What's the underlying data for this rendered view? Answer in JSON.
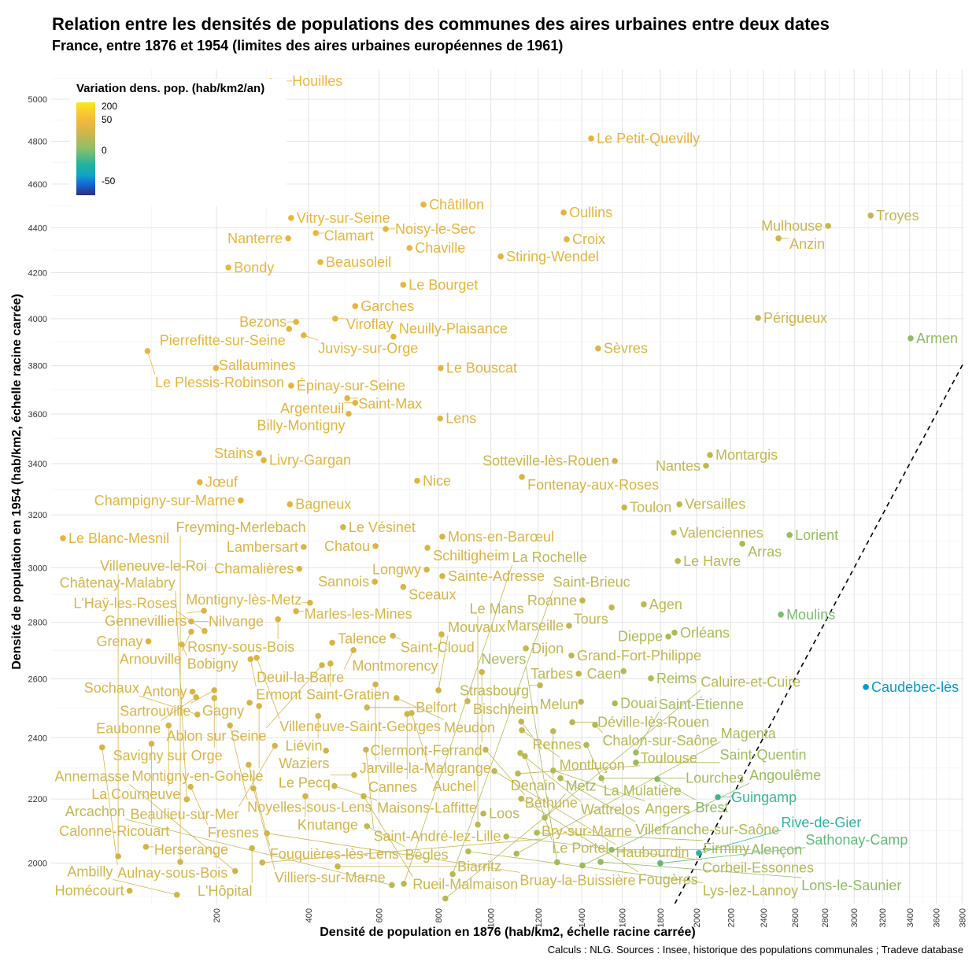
{
  "title": "Relation entre les densités de populations des communes des aires urbaines entre deux dates",
  "subtitle": "France, entre 1876 et 1954 (limites des aires urbaines européennes de 1961)",
  "caption": "Calculs : NLG. Sources : Insee, historique des populations communales ; Tradeve database",
  "chart_data": {
    "type": "scatter",
    "title": "Relation entre les densités de populations des communes des aires urbaines entre deux dates",
    "xlabel": "Densité de population en 1876 (hab/km2, échelle racine carrée)",
    "ylabel": "Densité de population en 1954 (hab/km2, échelle racine carrée)",
    "scale": "sqrt",
    "xlim": [
      13,
      3817
    ],
    "ylim": [
      1879,
      5145
    ],
    "grid": true,
    "reference_line": "y = x (dashed)",
    "xticks": [
      200,
      400,
      600,
      800,
      1000,
      1200,
      1400,
      1600,
      1800,
      2000,
      2200,
      2400,
      2600,
      2800,
      3000,
      3200,
      3400,
      3600,
      3800
    ],
    "yticks": [
      2000,
      2200,
      2400,
      2600,
      2800,
      3000,
      3200,
      3400,
      3600,
      3800,
      4000,
      4200,
      4400,
      4600,
      4800,
      5000
    ],
    "legend": {
      "title": "Variation dens. pop. (hab/km2/an)",
      "ticks": [
        "200",
        "50",
        "0",
        "-50"
      ],
      "placement": "top-left"
    },
    "color_variable": "(y - x) / 78",
    "points": [
      {
        "l": "Houilles",
        "x": 310,
        "y": 5088
      },
      {
        "l": "Le Petit-Quevilly",
        "x": 1445,
        "y": 4813
      },
      {
        "l": "Châtillon",
        "x": 747,
        "y": 4506
      },
      {
        "l": "Oullins",
        "x": 1315,
        "y": 4470
      },
      {
        "l": "Troyes",
        "x": 3116,
        "y": 4456
      },
      {
        "l": "Mulhouse",
        "x": 2821,
        "y": 4409
      },
      {
        "l": "Anzin",
        "x": 2495,
        "y": 4353
      },
      {
        "l": "Vitry-sur-Seine",
        "x": 357,
        "y": 4445
      },
      {
        "l": "Clamart",
        "x": 419,
        "y": 4377
      },
      {
        "l": "Noisy-le-Sec",
        "x": 621,
        "y": 4395
      },
      {
        "l": "Nanterre",
        "x": 350,
        "y": 4353
      },
      {
        "l": "Croix",
        "x": 1329,
        "y": 4349
      },
      {
        "l": "Chaville",
        "x": 699,
        "y": 4310
      },
      {
        "l": "Beausoleil",
        "x": 431,
        "y": 4247
      },
      {
        "l": "Stiring-Wendel",
        "x": 1040,
        "y": 4272
      },
      {
        "l": "Bondy",
        "x": 222,
        "y": 4223
      },
      {
        "l": "Le Bourget",
        "x": 678,
        "y": 4147
      },
      {
        "l": "Garches",
        "x": 528,
        "y": 4054
      },
      {
        "l": "Bezons",
        "x": 369,
        "y": 3986
      },
      {
        "l": "Viroflay",
        "x": 471,
        "y": 4000
      },
      {
        "l": "Pierrefitte-sur-Seine",
        "x": 352,
        "y": 3956
      },
      {
        "l": "Juvisy-sur-Orge",
        "x": 388,
        "y": 3929
      },
      {
        "l": "Neuilly-Plaisance",
        "x": 646,
        "y": 3923
      },
      {
        "l": "Le Plessis-Robinson",
        "x": 95,
        "y": 3862
      },
      {
        "l": "Sèvres",
        "x": 1479,
        "y": 3873
      },
      {
        "l": "Périgueux",
        "x": 2366,
        "y": 4003
      },
      {
        "l": "Armen",
        "x": 3407,
        "y": 3916
      },
      {
        "l": "Sallaumines",
        "x": 199,
        "y": 3790
      },
      {
        "l": "Le Bouscat",
        "x": 808,
        "y": 3790
      },
      {
        "l": "Épinay-sur-Seine",
        "x": 357,
        "y": 3717
      },
      {
        "l": "Saint-Max",
        "x": 505,
        "y": 3665
      },
      {
        "l": "Argenteuil",
        "x": 528,
        "y": 3646
      },
      {
        "l": "Billy-Montigny",
        "x": 509,
        "y": 3601
      },
      {
        "l": "Lens",
        "x": 806,
        "y": 3582
      },
      {
        "l": "Stains",
        "x": 284,
        "y": 3442
      },
      {
        "l": "Livry-Gargan",
        "x": 294,
        "y": 3414
      },
      {
        "l": "Montargis",
        "x": 2078,
        "y": 3435
      },
      {
        "l": "Sotteville-lès-Rouen",
        "x": 1562,
        "y": 3411
      },
      {
        "l": "Nantes",
        "x": 2055,
        "y": 3392
      },
      {
        "l": "Nice",
        "x": 725,
        "y": 3333
      },
      {
        "l": "Fontenay-aux-Roses",
        "x": 1129,
        "y": 3348
      },
      {
        "l": "Jœuf",
        "x": 171,
        "y": 3327
      },
      {
        "l": "Champigny-sur-Marne",
        "x": 246,
        "y": 3256
      },
      {
        "l": "Bagneux",
        "x": 354,
        "y": 3241
      },
      {
        "l": "Versailles",
        "x": 1904,
        "y": 3241
      },
      {
        "l": "Toulon",
        "x": 1610,
        "y": 3229
      },
      {
        "l": "Le Vésinet",
        "x": 493,
        "y": 3153
      },
      {
        "l": "Valenciennes",
        "x": 1873,
        "y": 3132
      },
      {
        "l": "Lorient",
        "x": 2566,
        "y": 3123
      },
      {
        "l": "Le Blanc-Mesnil",
        "x": 19,
        "y": 3111
      },
      {
        "l": "Mons-en-Barœul",
        "x": 814,
        "y": 3117
      },
      {
        "l": "Chatou",
        "x": 589,
        "y": 3081
      },
      {
        "l": "Schiltigheim",
        "x": 761,
        "y": 3075
      },
      {
        "l": "Arras",
        "x": 2270,
        "y": 3090
      },
      {
        "l": "Lambersart",
        "x": 388,
        "y": 3078
      },
      {
        "l": "Le Havre",
        "x": 1895,
        "y": 3025
      },
      {
        "l": "Longwy",
        "x": 758,
        "y": 2993
      },
      {
        "l": "Chamalières",
        "x": 377,
        "y": 2996
      },
      {
        "l": "Sainte-Adresse",
        "x": 814,
        "y": 2969
      },
      {
        "l": "Sannois",
        "x": 587,
        "y": 2948
      },
      {
        "l": "Sceaux",
        "x": 678,
        "y": 2929
      },
      {
        "l": "Roanne",
        "x": 1403,
        "y": 2879
      },
      {
        "l": "Montigny-lès-Metz",
        "x": 404,
        "y": 2871
      },
      {
        "l": "Agen",
        "x": 1711,
        "y": 2865
      },
      {
        "l": "Tours",
        "x": 1546,
        "y": 2854
      },
      {
        "l": "Marles-les-Mines",
        "x": 369,
        "y": 2840
      },
      {
        "l": "Gennevilliers",
        "x": 178,
        "y": 2842
      },
      {
        "l": "Moulins",
        "x": 2510,
        "y": 2828
      },
      {
        "l": "Nilvange",
        "x": 157,
        "y": 2803
      },
      {
        "l": "Rosny-sous-Bois",
        "x": 326,
        "y": 2811
      },
      {
        "l": "Marseille",
        "x": 1340,
        "y": 2788
      },
      {
        "l": "Orléans",
        "x": 1877,
        "y": 2763
      },
      {
        "l": "Dieppe",
        "x": 1843,
        "y": 2749
      },
      {
        "l": "Grenay",
        "x": 96,
        "y": 2732
      },
      {
        "l": "Arnouville",
        "x": 157,
        "y": 2766
      },
      {
        "l": "L'Haÿ-les-Roses",
        "x": 179,
        "y": 2769
      },
      {
        "l": "Bobigny",
        "x": 142,
        "y": 2721
      },
      {
        "l": "Talence",
        "x": 463,
        "y": 2727
      },
      {
        "l": "Saint-Cloud",
        "x": 644,
        "y": 2752
      },
      {
        "l": "Montmorency",
        "x": 811,
        "y": 2757
      },
      {
        "l": "Dijon",
        "x": 1146,
        "y": 2707
      },
      {
        "l": "Deuil-la-Barre",
        "x": 523,
        "y": 2701
      },
      {
        "l": "Grand-Fort-Philippe",
        "x": 1351,
        "y": 2682
      },
      {
        "l": "Villeneuve-Saint-Georges",
        "x": 279,
        "y": 2674
      },
      {
        "l": "Ermont",
        "x": 266,
        "y": 2669
      },
      {
        "l": "Saint-Gratien",
        "x": 458,
        "y": 2654
      },
      {
        "l": "Ablon sur Seine",
        "x": 435,
        "y": 2648
      },
      {
        "l": "Caen",
        "x": 1606,
        "y": 2627
      },
      {
        "l": "Clermont-Ferrand",
        "x": 964,
        "y": 2624
      },
      {
        "l": "Tarbes",
        "x": 1385,
        "y": 2618
      },
      {
        "l": "Reims",
        "x": 1749,
        "y": 2602
      },
      {
        "l": "Jarville-la-Malgrange",
        "x": 589,
        "y": 2581
      },
      {
        "l": "Strasbourg",
        "x": 1208,
        "y": 2578
      },
      {
        "l": "Caudebec-lès",
        "x": 3082,
        "y": 2572
      },
      {
        "l": "Antony",
        "x": 159,
        "y": 2556
      },
      {
        "l": "Sartrouville",
        "x": 196,
        "y": 2561
      },
      {
        "l": "Savigny sur Orge",
        "x": 196,
        "y": 2534
      },
      {
        "l": "Eaubonne",
        "x": 165,
        "y": 2537
      },
      {
        "l": "Gagny",
        "x": 264,
        "y": 2518
      },
      {
        "l": "Montigny-en-Gohelle",
        "x": 284,
        "y": 2507
      },
      {
        "l": "Sochaux",
        "x": 167,
        "y": 2478
      },
      {
        "l": "Liévin",
        "x": 425,
        "y": 2473
      },
      {
        "l": "Belfort",
        "x": 563,
        "y": 2502
      },
      {
        "l": "Meudon",
        "x": 656,
        "y": 2534
      },
      {
        "l": "Mouvaux",
        "x": 800,
        "y": 2561
      },
      {
        "l": "Auchel",
        "x": 706,
        "y": 2483
      },
      {
        "l": "Cannes",
        "x": 691,
        "y": 2480
      },
      {
        "l": "Bischheim",
        "x": 908,
        "y": 2523
      },
      {
        "l": "Noyelles-sous-Lens",
        "x": 225,
        "y": 2441
      },
      {
        "l": "La Courneuve",
        "x": 123,
        "y": 2441
      },
      {
        "l": "Melun",
        "x": 1396,
        "y": 2521
      },
      {
        "l": "Douai",
        "x": 1562,
        "y": 2516
      },
      {
        "l": "Rennes",
        "x": 1126,
        "y": 2454
      },
      {
        "l": "Déville-lès-Rouen",
        "x": 1355,
        "y": 2452
      },
      {
        "l": "Chalon-sur-Saône",
        "x": 1464,
        "y": 2443
      },
      {
        "l": "Montluçon",
        "x": 1129,
        "y": 2425
      },
      {
        "l": "Denain",
        "x": 1267,
        "y": 2422
      },
      {
        "l": "La Mulatière",
        "x": 1422,
        "y": 2376
      },
      {
        "l": "Beaulieu-sur-Mer",
        "x": 319,
        "y": 2373
      },
      {
        "l": "Calonne-Ricouart",
        "x": 100,
        "y": 2380
      },
      {
        "l": "Aulnay-sous-Bois",
        "x": 47,
        "y": 2368
      },
      {
        "l": "Waziers",
        "x": 446,
        "y": 2357
      },
      {
        "l": "Saint-André-lez-Lille",
        "x": 560,
        "y": 2360
      },
      {
        "l": "Fouquières-lès-Lens",
        "x": 262,
        "y": 2311
      },
      {
        "l": "Le Pecq",
        "x": 525,
        "y": 2277
      },
      {
        "l": "Villiers-sur-Marne",
        "x": 272,
        "y": 2234
      },
      {
        "l": "Fresnes",
        "x": 156,
        "y": 2239
      },
      {
        "l": "Maisons-Laffitte",
        "x": 469,
        "y": 2242
      },
      {
        "l": "Knutange",
        "x": 392,
        "y": 2209
      },
      {
        "l": "Rueil-Malmaison",
        "x": 553,
        "y": 2209
      },
      {
        "l": "Châtenay-Malabry",
        "x": 150,
        "y": 2199
      },
      {
        "l": "Bègles",
        "x": 563,
        "y": 2114
      },
      {
        "l": "Bruay-la-Buissière",
        "x": 301,
        "y": 2092
      },
      {
        "l": "Herserange",
        "x": 93,
        "y": 2050
      },
      {
        "l": "L'Hôpital",
        "x": 269,
        "y": 2046
      },
      {
        "l": "Villeneuve-le-Roi",
        "x": 62,
        "y": 2021
      },
      {
        "l": "Freyming-Merlebach",
        "x": 140,
        "y": 2004
      },
      {
        "l": "Bry-sur-Marne",
        "x": 291,
        "y": 2002
      },
      {
        "l": "Biarritz",
        "x": 478,
        "y": 1990
      },
      {
        "l": "Annemasse",
        "x": 235,
        "y": 1976
      },
      {
        "l": "Homécourt",
        "x": 74,
        "y": 1917
      },
      {
        "l": "Ambilly",
        "x": 135,
        "y": 1905
      },
      {
        "l": "Béthune",
        "x": 979,
        "y": 2360
      },
      {
        "l": "Wattrelos",
        "x": 1122,
        "y": 2349
      },
      {
        "l": "Le Portel",
        "x": 1142,
        "y": 2339
      },
      {
        "l": "Haubourdin",
        "x": 1014,
        "y": 2290
      },
      {
        "l": "Toulouse",
        "x": 1112,
        "y": 2282
      },
      {
        "l": "Angers",
        "x": 1267,
        "y": 2292
      },
      {
        "l": "Villefranche-sur-Saône",
        "x": 1300,
        "y": 2267
      },
      {
        "l": "Lourches",
        "x": 1495,
        "y": 2267
      },
      {
        "l": "Brest",
        "x": 1783,
        "y": 2264
      },
      {
        "l": "Saint-Étienne",
        "x": 1670,
        "y": 2351
      },
      {
        "l": "Saint-Quentin",
        "x": 1670,
        "y": 2318
      },
      {
        "l": "Fougères",
        "x": 1126,
        "y": 2201
      },
      {
        "l": "Guingamp",
        "x": 2124,
        "y": 2206
      },
      {
        "l": "Loos",
        "x": 970,
        "y": 2154
      },
      {
        "l": "Le Mans",
        "x": 948,
        "y": 2119
      },
      {
        "l": "Metz",
        "x": 1229,
        "y": 2141
      },
      {
        "l": "Firminy",
        "x": 1194,
        "y": 2094
      },
      {
        "l": "Corbeil-Essonnes",
        "x": 1063,
        "y": 2082
      },
      {
        "l": "Lys-lez-Lannoy",
        "x": 911,
        "y": 2036
      },
      {
        "l": "Magenta",
        "x": 1106,
        "y": 2029
      },
      {
        "l": "Alençon",
        "x": 1546,
        "y": 2041
      },
      {
        "l": "Rive-de-Gier",
        "x": 2014,
        "y": 2031
      },
      {
        "l": "Nevers",
        "x": 1285,
        "y": 2003
      },
      {
        "l": "Angoulême",
        "x": 1403,
        "y": 1993
      },
      {
        "l": "Lons-le-Saunier",
        "x": 1491,
        "y": 2004
      },
      {
        "l": "Sathonay-Camp",
        "x": 1799,
        "y": 2000
      },
      {
        "l": "Saint-Brieuc",
        "x": 852,
        "y": 1967
      },
      {
        "l": "La Rochelle",
        "x": 680,
        "y": 1938
      },
      {
        "l": "Arcachon",
        "x": 641,
        "y": 1934
      },
      {
        "l": "Caluire-et-Cuire",
        "x": 825,
        "y": 1894
      }
    ]
  }
}
